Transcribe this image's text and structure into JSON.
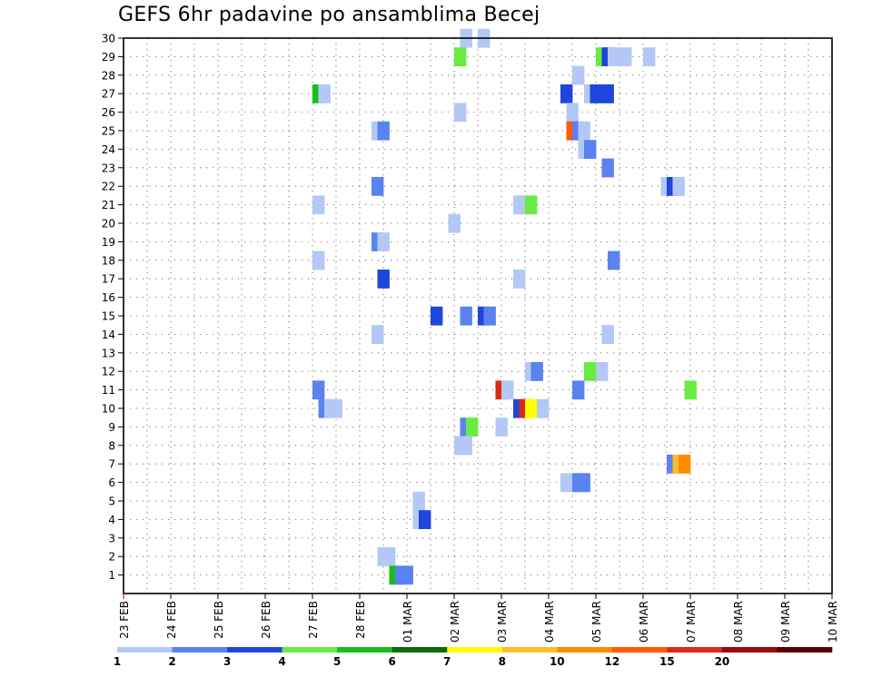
{
  "chart_data": {
    "type": "heatmap",
    "title": "GEFS 6hr padavine po ansamblima Becej",
    "xlabel": "",
    "ylabel": "",
    "x_ticks": [
      "23 FEB",
      "24 FEB",
      "25 FEB",
      "26 FEB",
      "27 FEB",
      "28 FEB",
      "01 MAR",
      "02 MAR",
      "03 MAR",
      "04 MAR",
      "05 MAR",
      "06 MAR",
      "07 MAR",
      "08 MAR",
      "09 MAR",
      "10 MAR"
    ],
    "xlim_days": [
      0,
      15
    ],
    "y_ticks": [
      1,
      2,
      3,
      4,
      5,
      6,
      7,
      8,
      9,
      10,
      11,
      12,
      13,
      14,
      15,
      16,
      17,
      18,
      19,
      20,
      21,
      22,
      23,
      24,
      25,
      26,
      27,
      28,
      29,
      30
    ],
    "ylim": [
      0,
      30
    ],
    "grid": true,
    "colorbar": {
      "labels": [
        "1",
        "2",
        "3",
        "4",
        "5",
        "6",
        "7",
        "8",
        "10",
        "12",
        "15",
        "20"
      ],
      "colors": [
        "#b4c8f5",
        "#5a82f0",
        "#1e46dc",
        "#69eb41",
        "#19be19",
        "#0a6e0a",
        "#ffff00",
        "#ffbe28",
        "#ff8c00",
        "#ff5a00",
        "#dc2814",
        "#9b0a0a",
        "#5a0000"
      ]
    },
    "cells": [
      {
        "m": 30,
        "t": 28.5,
        "c": 0
      },
      {
        "m": 30,
        "t": 30.0,
        "c": 0
      },
      {
        "m": 29,
        "t": 28.0,
        "c": 3
      },
      {
        "m": 29,
        "t": 40.0,
        "c": 3
      },
      {
        "m": 29,
        "t": 40.5,
        "c": 2
      },
      {
        "m": 29,
        "t": 41.0,
        "c": 0
      },
      {
        "m": 29,
        "t": 42.0,
        "c": 0
      },
      {
        "m": 29,
        "t": 44.0,
        "c": 0
      },
      {
        "m": 28,
        "t": 38.0,
        "c": 0
      },
      {
        "m": 27,
        "t": 16.0,
        "c": 4
      },
      {
        "m": 27,
        "t": 16.5,
        "c": 0
      },
      {
        "m": 27,
        "t": 37.0,
        "c": 2
      },
      {
        "m": 27,
        "t": 39.0,
        "c": 0
      },
      {
        "m": 27,
        "t": 39.5,
        "c": 2
      },
      {
        "m": 27,
        "t": 40.5,
        "c": 2
      },
      {
        "m": 26,
        "t": 28.0,
        "c": 0
      },
      {
        "m": 26,
        "t": 37.5,
        "c": 0
      },
      {
        "m": 25,
        "t": 21.0,
        "c": 0
      },
      {
        "m": 25,
        "t": 21.5,
        "c": 1
      },
      {
        "m": 25,
        "t": 37.5,
        "c": 9
      },
      {
        "m": 25,
        "t": 38.0,
        "c": 1
      },
      {
        "m": 25,
        "t": 38.5,
        "c": 0
      },
      {
        "m": 24,
        "t": 38.5,
        "c": 0
      },
      {
        "m": 24,
        "t": 39.0,
        "c": 1
      },
      {
        "m": 23,
        "t": 40.5,
        "c": 1
      },
      {
        "m": 22,
        "t": 21.0,
        "c": 1
      },
      {
        "m": 22,
        "t": 45.5,
        "c": 0
      },
      {
        "m": 22,
        "t": 46.0,
        "c": 2
      },
      {
        "m": 22,
        "t": 46.5,
        "c": 0
      },
      {
        "m": 21,
        "t": 16.0,
        "c": 0
      },
      {
        "m": 21,
        "t": 33.0,
        "c": 0
      },
      {
        "m": 21,
        "t": 33.5,
        "c": 0
      },
      {
        "m": 21,
        "t": 34.0,
        "c": 3
      },
      {
        "m": 20,
        "t": 27.5,
        "c": 0
      },
      {
        "m": 19,
        "t": 21.0,
        "c": 1
      },
      {
        "m": 19,
        "t": 21.5,
        "c": 0
      },
      {
        "m": 18,
        "t": 16.0,
        "c": 0
      },
      {
        "m": 18,
        "t": 41.0,
        "c": 1
      },
      {
        "m": 17,
        "t": 21.5,
        "c": 2
      },
      {
        "m": 17,
        "t": 33.0,
        "c": 0
      },
      {
        "m": 15,
        "t": 26.0,
        "c": 2
      },
      {
        "m": 15,
        "t": 28.5,
        "c": 1
      },
      {
        "m": 15,
        "t": 30.0,
        "c": 2
      },
      {
        "m": 15,
        "t": 30.5,
        "c": 1
      },
      {
        "m": 14,
        "t": 21.0,
        "c": 0
      },
      {
        "m": 14,
        "t": 40.5,
        "c": 0
      },
      {
        "m": 12,
        "t": 34.0,
        "c": 0
      },
      {
        "m": 12,
        "t": 34.5,
        "c": 1
      },
      {
        "m": 12,
        "t": 39.0,
        "c": 3
      },
      {
        "m": 12,
        "t": 40.0,
        "c": 0
      },
      {
        "m": 11,
        "t": 16.0,
        "c": 1
      },
      {
        "m": 11,
        "t": 31.5,
        "c": 10
      },
      {
        "m": 11,
        "t": 32.0,
        "c": 0
      },
      {
        "m": 11,
        "t": 38.0,
        "c": 1
      },
      {
        "m": 11,
        "t": 47.5,
        "c": 3
      },
      {
        "m": 10,
        "t": 16.5,
        "c": 1
      },
      {
        "m": 10,
        "t": 17.0,
        "c": 0
      },
      {
        "m": 10,
        "t": 17.5,
        "c": 0
      },
      {
        "m": 10,
        "t": 33.0,
        "c": 2
      },
      {
        "m": 10,
        "t": 33.5,
        "c": 10
      },
      {
        "m": 10,
        "t": 34.0,
        "c": 6
      },
      {
        "m": 10,
        "t": 34.5,
        "c": 6
      },
      {
        "m": 10,
        "t": 35.0,
        "c": 0
      },
      {
        "m": 9,
        "t": 28.5,
        "c": 1
      },
      {
        "m": 9,
        "t": 29.0,
        "c": 3
      },
      {
        "m": 9,
        "t": 31.5,
        "c": 0
      },
      {
        "m": 8,
        "t": 28.0,
        "c": 0
      },
      {
        "m": 8,
        "t": 28.5,
        "c": 0
      },
      {
        "m": 7,
        "t": 46.0,
        "c": 1
      },
      {
        "m": 7,
        "t": 46.5,
        "c": 7
      },
      {
        "m": 7,
        "t": 47.0,
        "c": 8
      },
      {
        "m": 6,
        "t": 37.0,
        "c": 0
      },
      {
        "m": 6,
        "t": 38.0,
        "c": 1
      },
      {
        "m": 6,
        "t": 38.5,
        "c": 1
      },
      {
        "m": 5,
        "t": 24.5,
        "c": 0
      },
      {
        "m": 4,
        "t": 24.5,
        "c": 0
      },
      {
        "m": 4,
        "t": 25.0,
        "c": 2
      },
      {
        "m": 2,
        "t": 21.5,
        "c": 0
      },
      {
        "m": 2,
        "t": 22.0,
        "c": 0
      },
      {
        "m": 1,
        "t": 22.5,
        "c": 4
      },
      {
        "m": 1,
        "t": 23.0,
        "c": 1
      },
      {
        "m": 1,
        "t": 23.5,
        "c": 1
      }
    ]
  }
}
